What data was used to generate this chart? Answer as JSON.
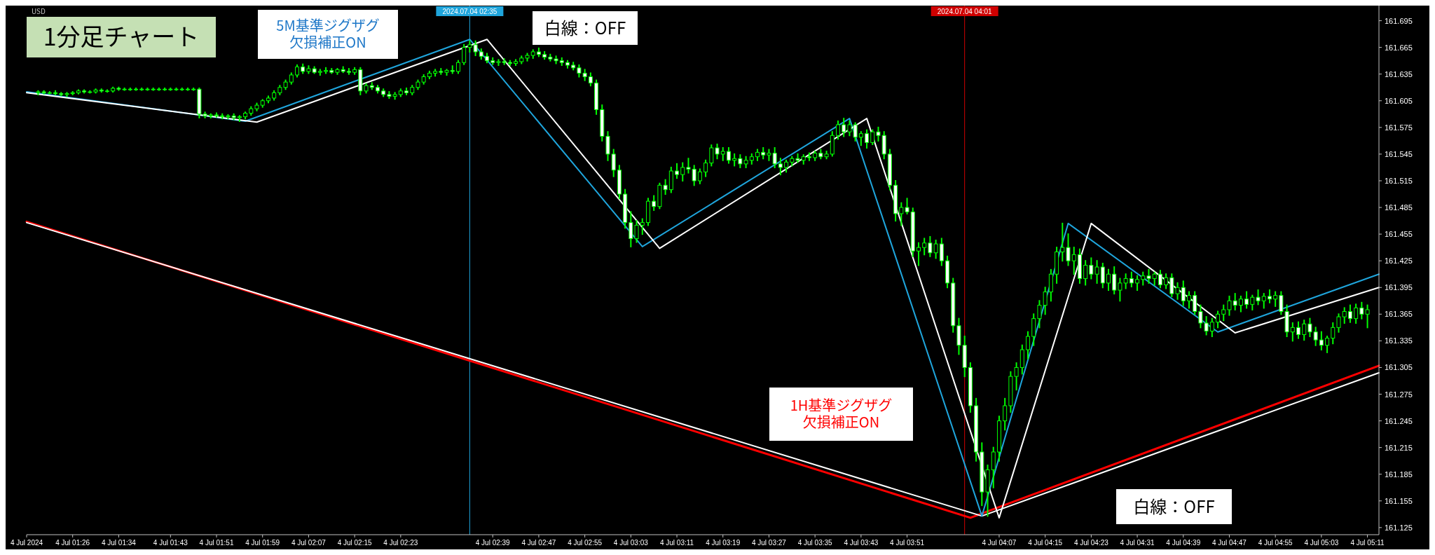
{
  "chart_data": {
    "type": "candlestick",
    "xlim": [
      "2024-07-04T01:18",
      "2024-07-04T05:13"
    ],
    "xticks": [
      {
        "value": "2024-07-04T01:18",
        "label": "4 Jul 2024"
      },
      {
        "value": "2024-07-04T01:26",
        "label": "4 Jul 01:26"
      },
      {
        "value": "2024-07-04T01:34",
        "label": "4 Jul 01:34"
      },
      {
        "value": "2024-07-04T01:43",
        "label": "4 Jul 01:43"
      },
      {
        "value": "2024-07-04T01:51",
        "label": "4 Jul 01:51"
      },
      {
        "value": "2024-07-04T01:59",
        "label": "4 Jul 01:59"
      },
      {
        "value": "2024-07-04T02:07",
        "label": "4 Jul 02:07"
      },
      {
        "value": "2024-07-04T02:15",
        "label": "4 Jul 02:15"
      },
      {
        "value": "2024-07-04T02:23",
        "label": "4 Jul 02:23"
      },
      {
        "value": "2024-07-04T02:39",
        "label": "4 Jul 02:39"
      },
      {
        "value": "2024-07-04T02:47",
        "label": "4 Jul 02:47"
      },
      {
        "value": "2024-07-04T02:55",
        "label": "4 Jul 02:55"
      },
      {
        "value": "2024-07-04T03:03",
        "label": "4 Jul 03:03"
      },
      {
        "value": "2024-07-04T03:11",
        "label": "4 Jul 03:11"
      },
      {
        "value": "2024-07-04T03:19",
        "label": "4 Jul 03:19"
      },
      {
        "value": "2024-07-04T03:27",
        "label": "4 Jul 03:27"
      },
      {
        "value": "2024-07-04T03:35",
        "label": "4 Jul 03:35"
      },
      {
        "value": "2024-07-04T03:43",
        "label": "4 Jul 03:43"
      },
      {
        "value": "2024-07-04T03:51",
        "label": "4 Jul 03:51"
      },
      {
        "value": "2024-07-04T04:07",
        "label": "4 Jul 04:07"
      },
      {
        "value": "2024-07-04T04:15",
        "label": "4 Jul 04:15"
      },
      {
        "value": "2024-07-04T04:23",
        "label": "4 Jul 04:23"
      },
      {
        "value": "2024-07-04T04:31",
        "label": "4 Jul 04:31"
      },
      {
        "value": "2024-07-04T04:39",
        "label": "4 Jul 04:39"
      },
      {
        "value": "2024-07-04T04:47",
        "label": "4 Jul 04:47"
      },
      {
        "value": "2024-07-04T04:55",
        "label": "4 Jul 04:55"
      },
      {
        "value": "2024-07-04T05:03",
        "label": "4 Jul 05:03"
      },
      {
        "value": "2024-07-04T05:11",
        "label": "4 Jul 05:11"
      }
    ],
    "ylim": [
      161.117,
      161.712
    ],
    "yticks": [
      161.125,
      161.155,
      161.185,
      161.215,
      161.245,
      161.275,
      161.305,
      161.335,
      161.365,
      161.395,
      161.425,
      161.455,
      161.485,
      161.515,
      161.545,
      161.575,
      161.605,
      161.635,
      161.665,
      161.695
    ],
    "annotations": [
      "1分足チャート",
      "5M基準ジグザグ欠損補正ON",
      "白線：OFF",
      "1H基準ジグザグ欠損補正ON",
      "白線：OFF",
      "USD"
    ],
    "ref_lines": [
      {
        "axis": "x",
        "value": "2024-07-04T02:35",
        "label": "2024.07.04 02:35",
        "color": "#1fa5dc"
      },
      {
        "axis": "x",
        "value": "2024-07-04T04:01",
        "label": "2024.07.04 04:01",
        "color": "#d00000"
      }
    ],
    "series": [
      {
        "color": "#00ff00",
        "x": [
          "2024-07-04T01:20",
          "2024-07-04T01:21",
          "2024-07-04T01:22",
          "2024-07-04T01:23",
          "2024-07-04T01:24",
          "2024-07-04T01:25",
          "2024-07-04T01:26",
          "2024-07-04T01:27",
          "2024-07-04T01:28",
          "2024-07-04T01:29",
          "2024-07-04T01:30",
          "2024-07-04T01:31",
          "2024-07-04T01:32",
          "2024-07-04T01:33",
          "2024-07-04T01:34",
          "2024-07-04T01:35",
          "2024-07-04T01:36",
          "2024-07-04T01:37",
          "2024-07-04T01:38",
          "2024-07-04T01:39",
          "2024-07-04T01:40",
          "2024-07-04T01:41",
          "2024-07-04T01:42",
          "2024-07-04T01:43",
          "2024-07-04T01:44",
          "2024-07-04T01:45",
          "2024-07-04T01:46",
          "2024-07-04T01:47",
          "2024-07-04T01:48",
          "2024-07-04T01:49",
          "2024-07-04T01:50",
          "2024-07-04T01:51",
          "2024-07-04T01:52",
          "2024-07-04T01:53",
          "2024-07-04T01:54",
          "2024-07-04T01:55",
          "2024-07-04T01:56",
          "2024-07-04T01:57",
          "2024-07-04T01:58",
          "2024-07-04T01:59",
          "2024-07-04T02:00",
          "2024-07-04T02:01",
          "2024-07-04T02:02",
          "2024-07-04T02:03",
          "2024-07-04T02:04",
          "2024-07-04T02:05",
          "2024-07-04T02:06",
          "2024-07-04T02:07",
          "2024-07-04T02:08",
          "2024-07-04T02:09",
          "2024-07-04T02:10",
          "2024-07-04T02:11",
          "2024-07-04T02:12",
          "2024-07-04T02:13",
          "2024-07-04T02:14",
          "2024-07-04T02:15",
          "2024-07-04T02:16",
          "2024-07-04T02:17",
          "2024-07-04T02:18",
          "2024-07-04T02:19",
          "2024-07-04T02:20",
          "2024-07-04T02:21",
          "2024-07-04T02:22",
          "2024-07-04T02:23",
          "2024-07-04T02:24",
          "2024-07-04T02:25",
          "2024-07-04T02:26",
          "2024-07-04T02:27",
          "2024-07-04T02:28",
          "2024-07-04T02:29",
          "2024-07-04T02:30",
          "2024-07-04T02:31",
          "2024-07-04T02:32",
          "2024-07-04T02:33",
          "2024-07-04T02:34",
          "2024-07-04T02:35",
          "2024-07-04T02:36",
          "2024-07-04T02:37",
          "2024-07-04T02:38",
          "2024-07-04T02:39",
          "2024-07-04T02:40",
          "2024-07-04T02:41",
          "2024-07-04T02:42",
          "2024-07-04T02:43",
          "2024-07-04T02:44",
          "2024-07-04T02:45",
          "2024-07-04T02:46",
          "2024-07-04T02:47",
          "2024-07-04T02:48",
          "2024-07-04T02:49",
          "2024-07-04T02:50",
          "2024-07-04T02:51",
          "2024-07-04T02:52",
          "2024-07-04T02:53",
          "2024-07-04T02:54",
          "2024-07-04T02:55",
          "2024-07-04T02:56",
          "2024-07-04T02:57",
          "2024-07-04T02:58",
          "2024-07-04T02:59",
          "2024-07-04T03:00",
          "2024-07-04T03:01",
          "2024-07-04T03:02",
          "2024-07-04T03:03",
          "2024-07-04T03:04",
          "2024-07-04T03:05",
          "2024-07-04T03:06",
          "2024-07-04T03:07",
          "2024-07-04T03:08",
          "2024-07-04T03:09",
          "2024-07-04T03:10",
          "2024-07-04T03:11",
          "2024-07-04T03:12",
          "2024-07-04T03:13",
          "2024-07-04T03:14",
          "2024-07-04T03:15",
          "2024-07-04T03:16",
          "2024-07-04T03:17",
          "2024-07-04T03:18",
          "2024-07-04T03:19",
          "2024-07-04T03:20",
          "2024-07-04T03:21",
          "2024-07-04T03:22",
          "2024-07-04T03:23",
          "2024-07-04T03:24",
          "2024-07-04T03:25",
          "2024-07-04T03:26",
          "2024-07-04T03:27",
          "2024-07-04T03:28",
          "2024-07-04T03:29",
          "2024-07-04T03:30",
          "2024-07-04T03:31",
          "2024-07-04T03:32",
          "2024-07-04T03:33",
          "2024-07-04T03:34",
          "2024-07-04T03:35",
          "2024-07-04T03:36",
          "2024-07-04T03:37",
          "2024-07-04T03:38",
          "2024-07-04T03:39",
          "2024-07-04T03:40",
          "2024-07-04T03:41",
          "2024-07-04T03:42",
          "2024-07-04T03:43",
          "2024-07-04T03:44",
          "2024-07-04T03:45",
          "2024-07-04T03:46",
          "2024-07-04T03:47",
          "2024-07-04T03:48",
          "2024-07-04T03:49",
          "2024-07-04T03:50",
          "2024-07-04T03:51",
          "2024-07-04T03:52",
          "2024-07-04T03:53",
          "2024-07-04T03:54",
          "2024-07-04T03:55",
          "2024-07-04T03:56",
          "2024-07-04T03:57",
          "2024-07-04T03:58",
          "2024-07-04T03:59",
          "2024-07-04T04:00",
          "2024-07-04T04:01",
          "2024-07-04T04:02",
          "2024-07-04T04:03",
          "2024-07-04T04:04",
          "2024-07-04T04:05",
          "2024-07-04T04:06",
          "2024-07-04T04:07",
          "2024-07-04T04:08",
          "2024-07-04T04:09",
          "2024-07-04T04:10",
          "2024-07-04T04:11",
          "2024-07-04T04:12",
          "2024-07-04T04:13",
          "2024-07-04T04:14",
          "2024-07-04T04:15",
          "2024-07-04T04:16",
          "2024-07-04T04:17",
          "2024-07-04T04:18",
          "2024-07-04T04:19",
          "2024-07-04T04:20",
          "2024-07-04T04:21",
          "2024-07-04T04:22",
          "2024-07-04T04:23",
          "2024-07-04T04:24",
          "2024-07-04T04:25",
          "2024-07-04T04:26",
          "2024-07-04T04:27",
          "2024-07-04T04:28",
          "2024-07-04T04:29",
          "2024-07-04T04:30",
          "2024-07-04T04:31",
          "2024-07-04T04:32",
          "2024-07-04T04:33",
          "2024-07-04T04:34",
          "2024-07-04T04:35",
          "2024-07-04T04:36",
          "2024-07-04T04:37",
          "2024-07-04T04:38",
          "2024-07-04T04:39",
          "2024-07-04T04:40",
          "2024-07-04T04:41",
          "2024-07-04T04:42",
          "2024-07-04T04:43",
          "2024-07-04T04:44",
          "2024-07-04T04:45",
          "2024-07-04T04:46",
          "2024-07-04T04:47",
          "2024-07-04T04:48",
          "2024-07-04T04:49",
          "2024-07-04T04:50",
          "2024-07-04T04:51",
          "2024-07-04T04:52",
          "2024-07-04T04:53",
          "2024-07-04T04:54",
          "2024-07-04T04:55",
          "2024-07-04T04:56",
          "2024-07-04T04:57",
          "2024-07-04T04:58",
          "2024-07-04T04:59",
          "2024-07-04T05:00",
          "2024-07-04T05:01",
          "2024-07-04T05:02",
          "2024-07-04T05:03",
          "2024-07-04T05:04",
          "2024-07-04T05:05",
          "2024-07-04T05:06",
          "2024-07-04T05:07",
          "2024-07-04T05:08",
          "2024-07-04T05:09",
          "2024-07-04T05:10",
          "2024-07-04T05:11"
        ],
        "ohlc": [
          [
            161.614,
            161.616,
            161.612,
            161.615
          ],
          [
            161.615,
            161.616,
            161.613,
            161.614
          ],
          [
            161.614,
            161.615,
            161.613,
            161.614
          ],
          [
            161.614,
            161.616,
            161.612,
            161.613
          ],
          [
            161.613,
            161.614,
            161.611,
            161.612
          ],
          [
            161.612,
            161.614,
            161.61,
            161.613
          ],
          [
            161.613,
            161.615,
            161.612,
            161.614
          ],
          [
            161.614,
            161.617,
            161.613,
            161.616
          ],
          [
            161.616,
            161.617,
            161.614,
            161.615
          ],
          [
            161.615,
            161.616,
            161.614,
            161.615
          ],
          [
            161.615,
            161.618,
            161.614,
            161.617
          ],
          [
            161.617,
            161.618,
            161.615,
            161.616
          ],
          [
            161.616,
            161.617,
            161.615,
            161.616
          ],
          [
            161.616,
            161.62,
            161.615,
            161.619
          ],
          [
            161.619,
            161.62,
            161.617,
            161.618
          ],
          [
            161.618,
            161.619,
            161.617,
            161.618
          ],
          [
            161.618,
            161.619,
            161.617,
            161.618
          ],
          [
            161.618,
            161.619,
            161.617,
            161.618
          ],
          [
            161.618,
            161.619,
            161.617,
            161.618
          ],
          [
            161.618,
            161.619,
            161.617,
            161.618
          ],
          [
            161.618,
            161.619,
            161.617,
            161.618
          ],
          [
            161.618,
            161.619,
            161.617,
            161.618
          ],
          [
            161.618,
            161.619,
            161.617,
            161.618
          ],
          [
            161.618,
            161.619,
            161.617,
            161.618
          ],
          [
            161.618,
            161.619,
            161.617,
            161.618
          ],
          [
            161.618,
            161.619,
            161.617,
            161.618
          ],
          [
            161.618,
            161.619,
            161.617,
            161.618
          ],
          [
            161.618,
            161.619,
            161.617,
            161.618
          ],
          [
            161.618,
            161.619,
            161.586,
            161.59
          ],
          [
            161.59,
            161.592,
            161.586,
            161.588
          ],
          [
            161.588,
            161.59,
            161.586,
            161.589
          ],
          [
            161.589,
            161.591,
            161.587,
            161.588
          ],
          [
            161.588,
            161.59,
            161.585,
            161.587
          ],
          [
            161.587,
            161.589,
            161.585,
            161.588
          ],
          [
            161.588,
            161.59,
            161.584,
            161.586
          ],
          [
            161.586,
            161.588,
            161.582,
            161.587
          ],
          [
            161.587,
            161.592,
            161.585,
            161.591
          ],
          [
            161.591,
            161.598,
            161.589,
            161.596
          ],
          [
            161.596,
            161.602,
            161.594,
            161.6
          ],
          [
            161.6,
            161.606,
            161.598,
            161.605
          ],
          [
            161.605,
            161.61,
            161.603,
            161.608
          ],
          [
            161.608,
            161.616,
            161.606,
            161.614
          ],
          [
            161.614,
            161.622,
            161.612,
            161.62
          ],
          [
            161.62,
            161.628,
            161.618,
            161.626
          ],
          [
            161.626,
            161.636,
            161.624,
            161.634
          ],
          [
            161.634,
            161.645,
            161.632,
            161.643
          ],
          [
            161.643,
            161.646,
            161.636,
            161.638
          ],
          [
            161.638,
            161.644,
            161.636,
            161.641
          ],
          [
            161.641,
            161.643,
            161.636,
            161.637
          ],
          [
            161.637,
            161.64,
            161.634,
            161.638
          ],
          [
            161.638,
            161.642,
            161.636,
            161.639
          ],
          [
            161.639,
            161.641,
            161.636,
            161.637
          ],
          [
            161.637,
            161.641,
            161.635,
            161.64
          ],
          [
            161.64,
            161.643,
            161.637,
            161.638
          ],
          [
            161.638,
            161.641,
            161.635,
            161.637
          ],
          [
            161.637,
            161.642,
            161.635,
            161.64
          ],
          [
            161.64,
            161.642,
            161.612,
            161.616
          ],
          [
            161.616,
            161.624,
            161.614,
            161.622
          ],
          [
            161.622,
            161.625,
            161.618,
            161.62
          ],
          [
            161.62,
            161.622,
            161.614,
            161.616
          ],
          [
            161.616,
            161.618,
            161.61,
            161.612
          ],
          [
            161.612,
            161.615,
            161.608,
            161.61
          ],
          [
            161.61,
            161.614,
            161.607,
            161.612
          ],
          [
            161.612,
            161.618,
            161.61,
            161.616
          ],
          [
            161.616,
            161.619,
            161.612,
            161.614
          ],
          [
            161.614,
            161.622,
            161.612,
            161.62
          ],
          [
            161.62,
            161.628,
            161.618,
            161.626
          ],
          [
            161.626,
            161.634,
            161.624,
            161.632
          ],
          [
            161.632,
            161.638,
            161.63,
            161.636
          ],
          [
            161.636,
            161.64,
            161.633,
            161.638
          ],
          [
            161.638,
            161.641,
            161.635,
            161.637
          ],
          [
            161.637,
            161.64,
            161.634,
            161.639
          ],
          [
            161.639,
            161.644,
            161.636,
            161.638
          ],
          [
            161.638,
            161.65,
            161.636,
            161.648
          ],
          [
            161.648,
            161.668,
            161.646,
            161.665
          ],
          [
            161.665,
            161.672,
            161.66,
            161.668
          ],
          [
            161.668,
            161.672,
            161.656,
            161.66
          ],
          [
            161.66,
            161.663,
            161.652,
            161.655
          ],
          [
            161.655,
            161.658,
            161.648,
            161.65
          ],
          [
            161.65,
            161.653,
            161.646,
            161.648
          ],
          [
            161.648,
            161.651,
            161.645,
            161.649
          ],
          [
            161.649,
            161.652,
            161.646,
            161.648
          ],
          [
            161.648,
            161.65,
            161.645,
            161.647
          ],
          [
            161.647,
            161.651,
            161.645,
            161.649
          ],
          [
            161.649,
            161.655,
            161.647,
            161.653
          ],
          [
            161.653,
            161.658,
            161.65,
            161.656
          ],
          [
            161.656,
            161.662,
            161.653,
            161.66
          ],
          [
            161.66,
            161.664,
            161.655,
            161.657
          ],
          [
            161.657,
            161.66,
            161.652,
            161.654
          ],
          [
            161.654,
            161.657,
            161.65,
            161.652
          ],
          [
            161.652,
            161.655,
            161.647,
            161.65
          ],
          [
            161.65,
            161.653,
            161.645,
            161.648
          ],
          [
            161.648,
            161.65,
            161.642,
            161.645
          ],
          [
            161.645,
            161.648,
            161.64,
            161.642
          ],
          [
            161.642,
            161.645,
            161.632,
            161.636
          ],
          [
            161.636,
            161.64,
            161.628,
            161.632
          ],
          [
            161.632,
            161.636,
            161.622,
            161.625
          ],
          [
            161.625,
            161.628,
            161.59,
            161.595
          ],
          [
            161.595,
            161.6,
            161.56,
            161.565
          ],
          [
            161.565,
            161.57,
            161.538,
            161.545
          ],
          [
            161.545,
            161.55,
            161.52,
            161.527
          ],
          [
            161.527,
            161.532,
            161.495,
            161.5
          ],
          [
            161.5,
            161.505,
            161.462,
            161.468
          ],
          [
            161.468,
            161.48,
            161.441,
            161.45
          ],
          [
            161.45,
            161.47,
            161.446,
            161.465
          ],
          [
            161.465,
            161.472,
            161.455,
            161.468
          ],
          [
            161.468,
            161.495,
            161.465,
            161.492
          ],
          [
            161.492,
            161.498,
            161.482,
            161.486
          ],
          [
            161.486,
            161.512,
            161.484,
            161.51
          ],
          [
            161.51,
            161.516,
            161.5,
            161.505
          ],
          [
            161.505,
            161.53,
            161.502,
            161.526
          ],
          [
            161.526,
            161.534,
            161.518,
            161.522
          ],
          [
            161.522,
            161.535,
            161.515,
            161.53
          ],
          [
            161.53,
            161.54,
            161.524,
            161.528
          ],
          [
            161.528,
            161.532,
            161.51,
            161.515
          ],
          [
            161.515,
            161.528,
            161.512,
            161.525
          ],
          [
            161.525,
            161.538,
            161.52,
            161.535
          ],
          [
            161.535,
            161.555,
            161.532,
            161.552
          ],
          [
            161.552,
            161.556,
            161.54,
            161.545
          ],
          [
            161.545,
            161.552,
            161.538,
            161.548
          ],
          [
            161.548,
            161.552,
            161.535,
            161.538
          ],
          [
            161.538,
            161.545,
            161.532,
            161.54
          ],
          [
            161.54,
            161.544,
            161.53,
            161.534
          ],
          [
            161.534,
            161.542,
            161.53,
            161.538
          ],
          [
            161.538,
            161.545,
            161.534,
            161.542
          ],
          [
            161.542,
            161.55,
            161.538,
            161.547
          ],
          [
            161.547,
            161.552,
            161.54,
            161.544
          ],
          [
            161.544,
            161.55,
            161.538,
            161.546
          ],
          [
            161.546,
            161.552,
            161.53,
            161.534
          ],
          [
            161.534,
            161.54,
            161.522,
            161.53
          ],
          [
            161.53,
            161.538,
            161.525,
            161.536
          ],
          [
            161.536,
            161.542,
            161.532,
            161.54
          ],
          [
            161.54,
            161.545,
            161.536,
            161.538
          ],
          [
            161.538,
            161.544,
            161.534,
            161.542
          ],
          [
            161.542,
            161.546,
            161.538,
            161.541
          ],
          [
            161.541,
            161.548,
            161.538,
            161.546
          ],
          [
            161.546,
            161.55,
            161.54,
            161.542
          ],
          [
            161.542,
            161.548,
            161.54,
            161.545
          ],
          [
            161.545,
            161.57,
            161.543,
            161.566
          ],
          [
            161.566,
            161.582,
            161.562,
            161.578
          ],
          [
            161.578,
            161.585,
            161.565,
            161.57
          ],
          [
            161.57,
            161.582,
            161.566,
            161.578
          ],
          [
            161.578,
            161.58,
            161.56,
            161.564
          ],
          [
            161.564,
            161.57,
            161.555,
            161.568
          ],
          [
            161.568,
            161.572,
            161.552,
            161.558
          ],
          [
            161.558,
            161.572,
            161.556,
            161.57
          ],
          [
            161.57,
            161.575,
            161.56,
            161.566
          ],
          [
            161.566,
            161.57,
            161.54,
            161.545
          ],
          [
            161.545,
            161.55,
            161.505,
            161.51
          ],
          [
            161.51,
            161.515,
            161.47,
            161.478
          ],
          [
            161.478,
            161.49,
            161.465,
            161.485
          ],
          [
            161.485,
            161.495,
            161.478,
            161.48
          ],
          [
            161.48,
            161.484,
            161.43,
            161.436
          ],
          [
            161.436,
            161.445,
            161.42,
            161.44
          ],
          [
            161.44,
            161.45,
            161.432,
            161.445
          ],
          [
            161.445,
            161.452,
            161.43,
            161.434
          ],
          [
            161.434,
            161.448,
            161.428,
            161.444
          ],
          [
            161.444,
            161.45,
            161.42,
            161.425
          ],
          [
            161.425,
            161.43,
            161.395,
            161.4
          ],
          [
            161.4,
            161.405,
            161.345,
            161.352
          ],
          [
            161.352,
            161.36,
            161.32,
            161.33
          ],
          [
            161.33,
            161.34,
            161.295,
            161.305
          ],
          [
            161.305,
            161.31,
            161.255,
            161.262
          ],
          [
            161.262,
            161.27,
            161.2,
            161.21
          ],
          [
            161.21,
            161.22,
            161.15,
            161.165
          ],
          [
            161.165,
            161.195,
            161.138,
            161.19
          ],
          [
            161.19,
            161.215,
            161.17,
            161.21
          ],
          [
            161.21,
            161.25,
            161.2,
            161.245
          ],
          [
            161.245,
            161.27,
            161.235,
            161.262
          ],
          [
            161.262,
            161.3,
            161.255,
            161.295
          ],
          [
            161.295,
            161.31,
            161.28,
            161.305
          ],
          [
            161.305,
            161.33,
            161.298,
            161.325
          ],
          [
            161.325,
            161.345,
            161.315,
            161.34
          ],
          [
            161.34,
            161.365,
            161.33,
            161.36
          ],
          [
            161.36,
            161.38,
            161.35,
            161.375
          ],
          [
            161.375,
            161.395,
            161.365,
            161.39
          ],
          [
            161.39,
            161.415,
            161.38,
            161.41
          ],
          [
            161.41,
            161.44,
            161.4,
            161.435
          ],
          [
            161.435,
            161.467,
            161.425,
            161.44
          ],
          [
            161.44,
            161.455,
            161.42,
            161.425
          ],
          [
            161.425,
            161.44,
            161.41,
            161.432
          ],
          [
            161.432,
            161.438,
            161.4,
            161.405
          ],
          [
            161.405,
            161.425,
            161.398,
            161.42
          ],
          [
            161.42,
            161.428,
            161.405,
            161.41
          ],
          [
            161.41,
            161.425,
            161.4,
            161.418
          ],
          [
            161.418,
            161.422,
            161.395,
            161.4
          ],
          [
            161.4,
            161.415,
            161.392,
            161.41
          ],
          [
            161.41,
            161.418,
            161.388,
            161.392
          ],
          [
            161.392,
            161.405,
            161.38,
            161.4
          ],
          [
            161.4,
            161.41,
            161.394,
            161.405
          ],
          [
            161.405,
            161.412,
            161.396,
            161.4
          ],
          [
            161.4,
            161.408,
            161.392,
            161.404
          ],
          [
            161.404,
            161.412,
            161.398,
            161.408
          ],
          [
            161.408,
            161.415,
            161.4,
            161.405
          ],
          [
            161.405,
            161.412,
            161.398,
            161.41
          ],
          [
            161.41,
            161.414,
            161.395,
            161.398
          ],
          [
            161.398,
            161.41,
            161.394,
            161.406
          ],
          [
            161.406,
            161.41,
            161.385,
            161.388
          ],
          [
            161.388,
            161.4,
            161.382,
            161.395
          ],
          [
            161.395,
            161.402,
            161.375,
            161.38
          ],
          [
            161.38,
            161.39,
            161.372,
            161.386
          ],
          [
            161.386,
            161.39,
            161.365,
            161.368
          ],
          [
            161.368,
            161.375,
            161.35,
            161.355
          ],
          [
            161.355,
            161.362,
            161.342,
            161.346
          ],
          [
            161.346,
            161.36,
            161.34,
            161.356
          ],
          [
            161.356,
            161.368,
            161.35,
            161.365
          ],
          [
            161.365,
            161.375,
            161.358,
            161.37
          ],
          [
            161.37,
            161.385,
            161.364,
            161.38
          ],
          [
            161.38,
            161.388,
            161.37,
            161.375
          ],
          [
            161.375,
            161.385,
            161.368,
            161.382
          ],
          [
            161.382,
            161.39,
            161.372,
            161.376
          ],
          [
            161.376,
            161.386,
            161.37,
            161.384
          ],
          [
            161.384,
            161.392,
            161.376,
            161.38
          ],
          [
            161.38,
            161.388,
            161.372,
            161.385
          ],
          [
            161.385,
            161.392,
            161.378,
            161.382
          ],
          [
            161.382,
            161.39,
            161.374,
            161.386
          ],
          [
            161.386,
            161.39,
            161.365,
            161.368
          ],
          [
            161.368,
            161.375,
            161.34,
            161.345
          ],
          [
            161.345,
            161.355,
            161.335,
            161.35
          ],
          [
            161.35,
            161.356,
            161.338,
            161.342
          ],
          [
            161.342,
            161.358,
            161.336,
            161.354
          ],
          [
            161.354,
            161.36,
            161.34,
            161.345
          ],
          [
            161.345,
            161.35,
            161.33,
            161.336
          ],
          [
            161.336,
            161.345,
            161.325,
            161.33
          ],
          [
            161.33,
            161.34,
            161.322,
            161.338
          ],
          [
            161.338,
            161.355,
            161.332,
            161.35
          ],
          [
            161.35,
            161.365,
            161.345,
            161.362
          ],
          [
            161.362,
            161.372,
            161.355,
            161.368
          ],
          [
            161.368,
            161.375,
            161.356,
            161.36
          ],
          [
            161.36,
            161.376,
            161.355,
            161.372
          ],
          [
            161.372,
            161.378,
            161.36,
            161.365
          ],
          [
            161.365,
            161.375,
            161.35,
            161.37
          ]
        ]
      },
      {
        "type": "line",
        "color": "#ff0000",
        "x": [
          "2024-07-04T01:18",
          "2024-07-04T04:02",
          "2024-07-04T05:13"
        ],
        "values": [
          161.469,
          161.136,
          161.307
        ]
      },
      {
        "type": "line",
        "color": "#ffffff",
        "x": [
          "2024-07-04T01:18",
          "2024-07-04T04:04",
          "2024-07-04T05:13"
        ],
        "values": [
          161.468,
          161.138,
          161.299
        ]
      },
      {
        "type": "line",
        "color": "#1fa5dc",
        "x": [
          "2024-07-04T01:18",
          "2024-07-04T01:56",
          "2024-07-04T02:35",
          "2024-07-04T03:05",
          "2024-07-04T03:41",
          "2024-07-04T04:04",
          "2024-07-04T04:19",
          "2024-07-04T04:45",
          "2024-07-04T05:13"
        ],
        "values": [
          161.615,
          161.582,
          161.674,
          161.441,
          161.585,
          161.138,
          161.467,
          161.345,
          161.41
        ]
      },
      {
        "type": "line",
        "color": "#ffffff",
        "x": [
          "2024-07-04T01:18",
          "2024-07-04T01:58",
          "2024-07-04T02:38",
          "2024-07-04T03:08",
          "2024-07-04T03:44",
          "2024-07-04T04:07",
          "2024-07-04T04:23",
          "2024-07-04T04:48",
          "2024-07-04T05:13"
        ],
        "values": [
          161.614,
          161.581,
          161.674,
          161.439,
          161.585,
          161.136,
          161.467,
          161.344,
          161.395
        ]
      }
    ]
  }
}
